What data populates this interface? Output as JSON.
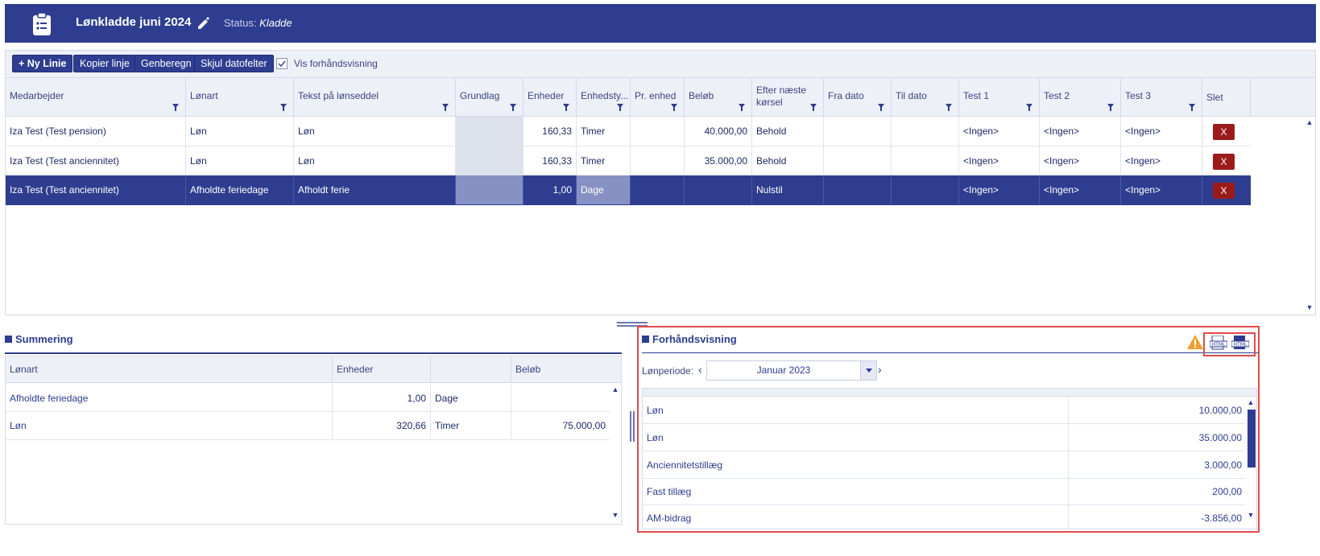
{
  "header": {
    "title": "Lønkladde juni 2024",
    "status_label": "Status:",
    "status_value": "Kladde"
  },
  "toolbar": {
    "new_line": "+ Ny Linie",
    "copy_line": "Kopier linje",
    "recalc": "Genberegn",
    "hide_dates": "Skjul datofelter",
    "preview_toggle_label": "Vis forhåndsvisning",
    "preview_toggle_checked": true
  },
  "grid": {
    "columns": [
      "Medarbejder",
      "Lønart",
      "Tekst på lønseddel",
      "Grundlag",
      "Enheder",
      "Enhedsty...",
      "Pr. enhed",
      "Beløb",
      "Efter næste kørsel",
      "Fra dato",
      "Til dato",
      "Test 1",
      "Test 2",
      "Test 3",
      "Slet"
    ],
    "rows": [
      {
        "employee": "Iza Test (Test pension)",
        "wage_type": "Løn",
        "text": "Løn",
        "basis": "",
        "units": "160,33",
        "unit_type": "Timer",
        "per_unit": "",
        "amount": "40.000,00",
        "after_run": "Behold",
        "from": "",
        "to": "",
        "t1": "<Ingen>",
        "t2": "<Ingen>",
        "t3": "<Ingen>",
        "del": "X",
        "selected": false
      },
      {
        "employee": "Iza Test (Test anciennitet)",
        "wage_type": "Løn",
        "text": "Løn",
        "basis": "",
        "units": "160,33",
        "unit_type": "Timer",
        "per_unit": "",
        "amount": "35.000,00",
        "after_run": "Behold",
        "from": "",
        "to": "",
        "t1": "<Ingen>",
        "t2": "<Ingen>",
        "t3": "<Ingen>",
        "del": "X",
        "selected": false
      },
      {
        "employee": "Iza Test (Test anciennitet)",
        "wage_type": "Afholdte feriedage",
        "text": "Afholdt ferie",
        "basis": "",
        "units": "1,00",
        "unit_type": "Dage",
        "per_unit": "",
        "amount": "",
        "after_run": "Nulstil",
        "from": "",
        "to": "",
        "t1": "<Ingen>",
        "t2": "<Ingen>",
        "t3": "<Ingen>",
        "del": "X",
        "selected": true
      }
    ]
  },
  "summary": {
    "title": "Summering",
    "columns": [
      "Lønart",
      "Enheder",
      "",
      "Beløb"
    ],
    "rows": [
      {
        "wage_type": "Afholdte feriedage",
        "units": "1,00",
        "unit_type": "Dage",
        "amount": ""
      },
      {
        "wage_type": "Løn",
        "units": "320,66",
        "unit_type": "Timer",
        "amount": "75.000,00"
      }
    ]
  },
  "preview": {
    "title": "Forhåndsvisning",
    "period_label": "Lønperiode:",
    "period_value": "Januar 2023",
    "icons": [
      "warning-icon",
      "html-export-icon",
      "html-document-icon"
    ],
    "rows": [
      {
        "label": "Løn",
        "value": "10.000,00"
      },
      {
        "label": "Løn",
        "value": "35.000,00"
      },
      {
        "label": "Anciennitetstillæg",
        "value": "3.000,00"
      },
      {
        "label": "Fast tillæg",
        "value": "200,00"
      },
      {
        "label": "AM-bidrag",
        "value": "-3.856,00"
      }
    ]
  },
  "colors": {
    "brand": "#2e3d8f",
    "delete": "#9b1b1b",
    "highlight": "#e24a4a",
    "warning": "#f0a030"
  }
}
